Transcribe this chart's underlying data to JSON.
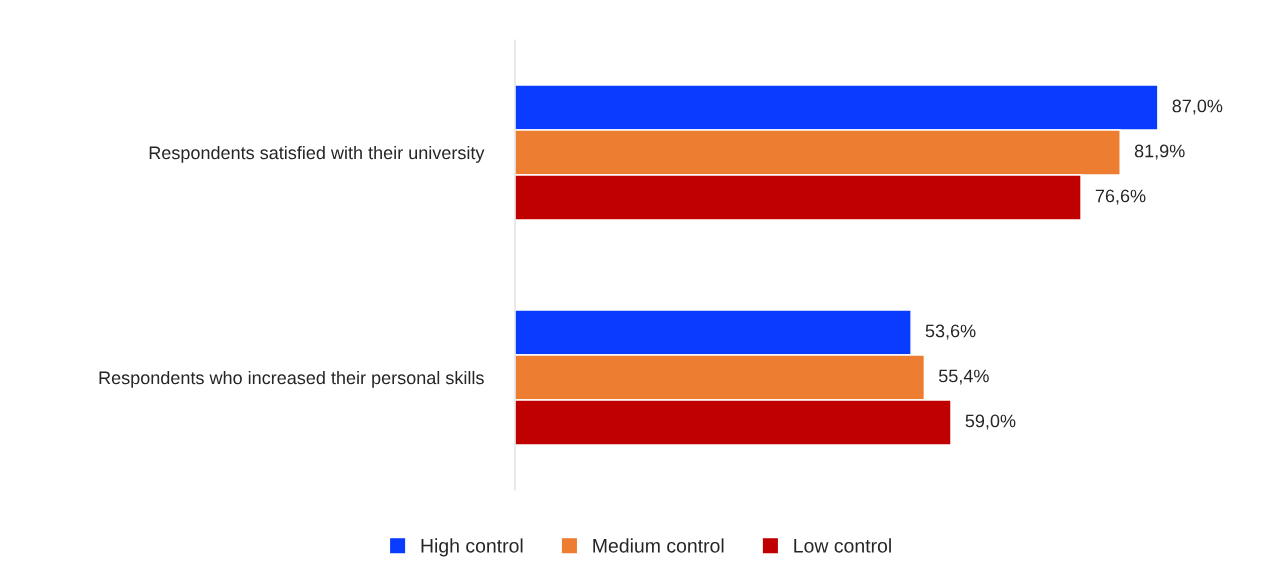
{
  "chart_data": {
    "type": "bar",
    "orientation": "horizontal",
    "categories": [
      "Respondents satisfied with their university",
      "Respondents who increased their personal skills"
    ],
    "series": [
      {
        "name": "High control",
        "color": "#0a3cff",
        "values": [
          87.0,
          53.6
        ],
        "value_labels": [
          "87,0%",
          "53,6%"
        ]
      },
      {
        "name": "Medium control",
        "color": "#ed7d31",
        "values": [
          81.9,
          55.4
        ],
        "value_labels": [
          "81,9%",
          "55,4%"
        ]
      },
      {
        "name": "Low control",
        "color": "#c00000",
        "values": [
          76.6,
          59.0
        ],
        "value_labels": [
          "76,6%",
          "59,0%"
        ]
      }
    ],
    "tick_labels": "y",
    "grid": false,
    "legend": "bottom"
  }
}
